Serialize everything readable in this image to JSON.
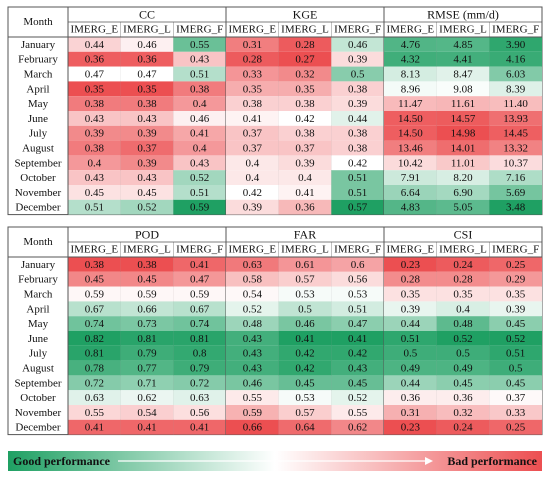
{
  "chart_data": {
    "type": "heatmap",
    "row_header": "Month",
    "sub_columns": [
      "IMERG_E",
      "IMERG_L",
      "IMERG_F"
    ],
    "colors": {
      "good": "#1fa063",
      "bad": "#ec4f51",
      "mid": "#ffffff"
    },
    "panels": [
      {
        "months": [
          "January",
          "February",
          "March",
          "April",
          "May",
          "June",
          "July",
          "August",
          "September",
          "October",
          "November",
          "December"
        ],
        "groups": [
          {
            "name": "CC",
            "good": "high",
            "values": [
              [
                0.44,
                0.46,
                0.55
              ],
              [
                0.36,
                0.36,
                0.43
              ],
              [
                0.47,
                0.47,
                0.51
              ],
              [
                0.35,
                0.35,
                0.38
              ],
              [
                0.38,
                0.38,
                0.4
              ],
              [
                0.43,
                0.43,
                0.46
              ],
              [
                0.39,
                0.39,
                0.41
              ],
              [
                0.38,
                0.37,
                0.4
              ],
              [
                0.4,
                0.39,
                0.43
              ],
              [
                0.43,
                0.43,
                0.52
              ],
              [
                0.45,
                0.45,
                0.51
              ],
              [
                0.51,
                0.52,
                0.59
              ]
            ]
          },
          {
            "name": "KGE",
            "good": "high",
            "values": [
              [
                0.31,
                0.28,
                0.46
              ],
              [
                0.28,
                0.27,
                0.39
              ],
              [
                0.33,
                0.32,
                0.5
              ],
              [
                0.35,
                0.35,
                0.38
              ],
              [
                0.38,
                0.38,
                0.39
              ],
              [
                0.41,
                0.42,
                0.44
              ],
              [
                0.37,
                0.38,
                0.38
              ],
              [
                0.37,
                0.37,
                0.38
              ],
              [
                0.4,
                0.39,
                0.42
              ],
              [
                0.4,
                0.4,
                0.51
              ],
              [
                0.42,
                0.41,
                0.51
              ],
              [
                0.39,
                0.36,
                0.57
              ]
            ]
          },
          {
            "name": "RMSE (mm/d)",
            "good": "low",
            "values": [
              [
                4.76,
                4.85,
                3.9
              ],
              [
                4.32,
                4.41,
                4.16
              ],
              [
                8.13,
                8.47,
                6.03
              ],
              [
                8.96,
                9.08,
                8.39
              ],
              [
                11.47,
                11.61,
                11.4
              ],
              [
                14.5,
                14.57,
                13.93
              ],
              [
                14.5,
                14.98,
                14.45
              ],
              [
                13.46,
                14.01,
                13.32
              ],
              [
                10.42,
                11.01,
                10.37
              ],
              [
                7.91,
                8.2,
                7.16
              ],
              [
                6.64,
                6.9,
                5.69
              ],
              [
                4.83,
                5.05,
                3.48
              ]
            ]
          }
        ]
      },
      {
        "months": [
          "January",
          "February",
          "March",
          "April",
          "May",
          "June",
          "July",
          "August",
          "September",
          "October",
          "November",
          "December"
        ],
        "groups": [
          {
            "name": "POD",
            "good": "high",
            "values": [
              [
                0.38,
                0.38,
                0.41
              ],
              [
                0.45,
                0.45,
                0.47
              ],
              [
                0.59,
                0.59,
                0.59
              ],
              [
                0.67,
                0.66,
                0.67
              ],
              [
                0.74,
                0.73,
                0.74
              ],
              [
                0.82,
                0.81,
                0.81
              ],
              [
                0.81,
                0.79,
                0.8
              ],
              [
                0.78,
                0.77,
                0.79
              ],
              [
                0.72,
                0.71,
                0.72
              ],
              [
                0.63,
                0.62,
                0.63
              ],
              [
                0.55,
                0.54,
                0.56
              ],
              [
                0.41,
                0.41,
                0.41
              ]
            ]
          },
          {
            "name": "FAR",
            "good": "low",
            "values": [
              [
                0.63,
                0.61,
                0.6
              ],
              [
                0.58,
                0.57,
                0.56
              ],
              [
                0.54,
                0.53,
                0.53
              ],
              [
                0.52,
                0.5,
                0.51
              ],
              [
                0.48,
                0.46,
                0.47
              ],
              [
                0.43,
                0.41,
                0.41
              ],
              [
                0.43,
                0.42,
                0.42
              ],
              [
                0.43,
                0.42,
                0.43
              ],
              [
                0.46,
                0.45,
                0.45
              ],
              [
                0.55,
                0.53,
                0.52
              ],
              [
                0.59,
                0.57,
                0.55
              ],
              [
                0.66,
                0.64,
                0.62
              ]
            ]
          },
          {
            "name": "CSI",
            "good": "high",
            "values": [
              [
                0.23,
                0.24,
                0.25
              ],
              [
                0.28,
                0.28,
                0.29
              ],
              [
                0.35,
                0.35,
                0.35
              ],
              [
                0.39,
                0.4,
                0.39
              ],
              [
                0.44,
                0.48,
                0.45
              ],
              [
                0.51,
                0.52,
                0.52
              ],
              [
                0.5,
                0.5,
                0.51
              ],
              [
                0.49,
                0.49,
                0.5
              ],
              [
                0.44,
                0.45,
                0.45
              ],
              [
                0.36,
                0.36,
                0.37
              ],
              [
                0.31,
                0.32,
                0.33
              ],
              [
                0.23,
                0.24,
                0.25
              ]
            ]
          }
        ]
      }
    ],
    "legend": {
      "good_label": "Good performance",
      "bad_label": "Bad performance"
    }
  }
}
